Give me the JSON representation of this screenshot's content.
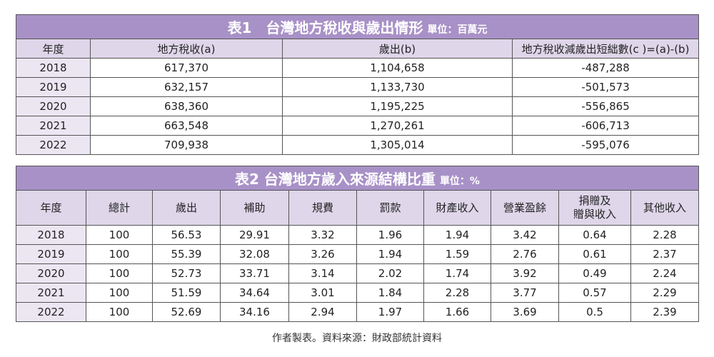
{
  "table1": {
    "title": "表1　台灣地方稅收與歲出情形",
    "unit": "單位：百萬元",
    "headers": [
      "年度",
      "地方稅收(a)",
      "歲出(b)",
      "地方稅收減歲出短絀數(c )=(a)-(b)"
    ],
    "rows": [
      [
        "2018",
        "617,370",
        "1,104,658",
        "-487,288"
      ],
      [
        "2019",
        "632,157",
        "1,133,730",
        "-501,573"
      ],
      [
        "2020",
        "638,360",
        "1,195,225",
        "-556,865"
      ],
      [
        "2021",
        "663,548",
        "1,270,261",
        "-606,713"
      ],
      [
        "2022",
        "709,938",
        "1,305,014",
        "-595,076"
      ]
    ]
  },
  "table2": {
    "title": "表2 台灣地方歲入來源結構比重",
    "unit": "單位：%",
    "headers": [
      "年度",
      "總計",
      "歲出",
      "補助",
      "規費",
      "罰款",
      "財產收入",
      "營業盈餘",
      "捐贈及\n贈與收入",
      "其他收入"
    ],
    "rows": [
      [
        "2018",
        "100",
        "56.53",
        "29.91",
        "3.32",
        "1.96",
        "1.94",
        "3.42",
        "0.64",
        "2.28"
      ],
      [
        "2019",
        "100",
        "55.39",
        "32.08",
        "3.26",
        "1.94",
        "1.59",
        "2.76",
        "0.61",
        "2.37"
      ],
      [
        "2020",
        "100",
        "52.73",
        "33.71",
        "3.14",
        "2.02",
        "1.74",
        "3.92",
        "0.49",
        "2.24"
      ],
      [
        "2021",
        "100",
        "51.59",
        "34.64",
        "3.01",
        "1.84",
        "2.28",
        "3.77",
        "0.57",
        "2.29"
      ],
      [
        "2022",
        "100",
        "52.69",
        "34.16",
        "2.94",
        "1.97",
        "1.66",
        "3.69",
        "0.5",
        "2.39"
      ]
    ]
  },
  "caption": "作者製表。資料來源：財政部統計資料",
  "colors": {
    "title_bg": "#a891c7",
    "header_bg": "#dfd6ea",
    "year_bg": "#ece6f3"
  }
}
